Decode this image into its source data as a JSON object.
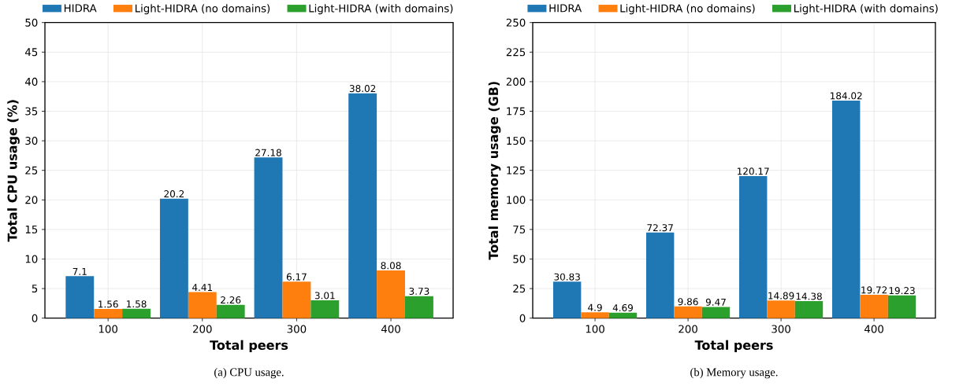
{
  "chart_data": [
    {
      "type": "bar",
      "categories": [
        "100",
        "200",
        "300",
        "400"
      ],
      "xlabel": "Total peers",
      "ylabel": "Total CPU usage (%)",
      "ylim": [
        0,
        50
      ],
      "yticks": [
        0,
        5,
        10,
        15,
        20,
        25,
        30,
        35,
        40,
        45,
        50
      ],
      "grid": true,
      "legend": "top",
      "data_labels": true,
      "series": [
        {
          "name": "HIDRA",
          "color": "#1f77b4",
          "values": [
            7.1,
            20.2,
            27.18,
            38.02
          ]
        },
        {
          "name": "Light-HIDRA (no domains)",
          "color": "#ff7f0e",
          "values": [
            1.56,
            4.41,
            6.17,
            8.08
          ]
        },
        {
          "name": "Light-HIDRA (with domains)",
          "color": "#2ca02c",
          "values": [
            1.58,
            2.26,
            3.01,
            3.73
          ]
        }
      ],
      "annotations": [
        "(a) CPU usage."
      ]
    },
    {
      "type": "bar",
      "categories": [
        "100",
        "200",
        "300",
        "400"
      ],
      "xlabel": "Total peers",
      "ylabel": "Total memory usage (GB)",
      "ylim": [
        0,
        250
      ],
      "yticks": [
        0,
        25,
        50,
        75,
        100,
        125,
        150,
        175,
        200,
        225,
        250
      ],
      "grid": true,
      "legend": "top",
      "data_labels": true,
      "series": [
        {
          "name": "HIDRA",
          "color": "#1f77b4",
          "values": [
            30.83,
            72.37,
            120.17,
            184.02
          ]
        },
        {
          "name": "Light-HIDRA (no domains)",
          "color": "#ff7f0e",
          "values": [
            4.9,
            9.86,
            14.89,
            19.72
          ]
        },
        {
          "name": "Light-HIDRA (with domains)",
          "color": "#2ca02c",
          "values": [
            4.69,
            9.47,
            14.38,
            19.23
          ]
        }
      ],
      "annotations": [
        "(b) Memory usage."
      ]
    }
  ]
}
